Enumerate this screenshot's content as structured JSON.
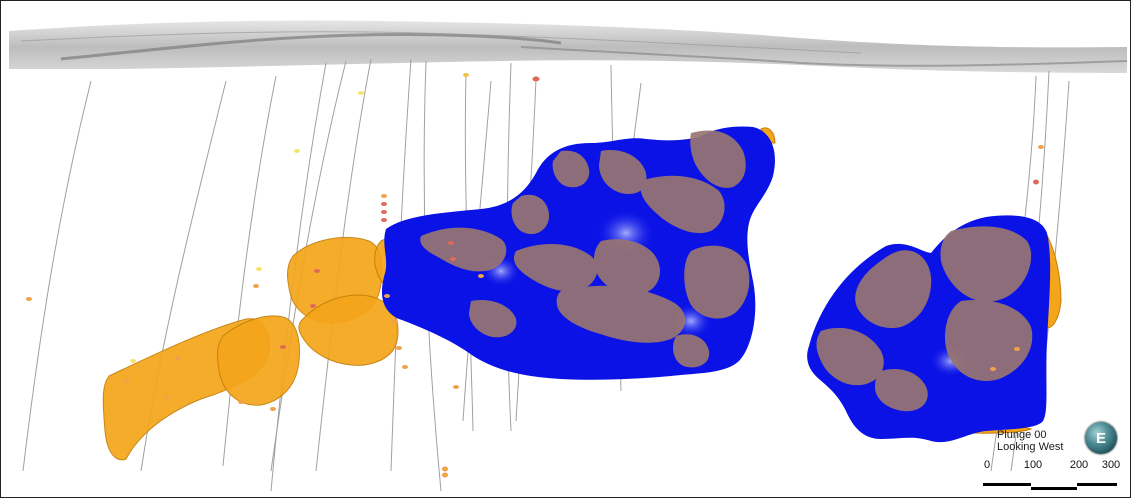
{
  "view": {
    "plunge_label": "Plunge 00",
    "direction_label": "Looking West"
  },
  "compass": {
    "letter": "E",
    "icon": "compass-ball-icon"
  },
  "scale_bar": {
    "ticks": [
      "0",
      "100",
      "200",
      "300"
    ]
  },
  "colors": {
    "orebody_blue": "#0a12e6",
    "grade_brown": "#9a7572",
    "orange_lens": "#f5a51a",
    "topography": "#cfcfcf",
    "drillhole": "#9a9a9a"
  }
}
